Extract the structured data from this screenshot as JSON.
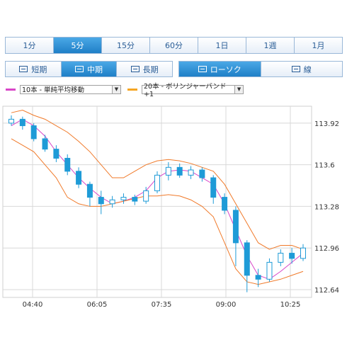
{
  "timeframe_tabs": [
    "1分",
    "5分",
    "15分",
    "60分",
    "1日",
    "1週",
    "1月"
  ],
  "active_timeframe": "5分",
  "period_buttons": [
    {
      "label": "短期",
      "icon": "range-short-icon"
    },
    {
      "label": "中期",
      "icon": "range-mid-icon",
      "active": true
    },
    {
      "label": "長期",
      "icon": "range-long-icon"
    }
  ],
  "chart_type_buttons": [
    {
      "label": "ローソク",
      "icon": "candlestick-icon",
      "active": true
    },
    {
      "label": "線",
      "icon": "line-chart-icon"
    }
  ],
  "indicators": {
    "ma": {
      "label": "10本 - 単純平均移動",
      "color": "#d946c8"
    },
    "bb": {
      "label": "20本 - ボリンジャーバンド+1",
      "color": "#f5a623"
    }
  },
  "colors": {
    "candle": "#1e9bd7",
    "ma": "#d946c8",
    "band": "#f07a2a",
    "grid": "#d8d8d8",
    "accent": "#1f7fc7"
  },
  "chart_data": {
    "type": "candlestick",
    "x_ticks": [
      "04:40",
      "06:05",
      "07:35",
      "09:00",
      "10:25"
    ],
    "y_ticks": [
      113.92,
      113.6,
      113.28,
      112.96,
      112.64
    ],
    "ylim": [
      112.58,
      114.05
    ],
    "grid": true,
    "series": [
      {
        "name": "10本 - 単純平均移動",
        "type": "line",
        "values": [
          113.9,
          113.95,
          113.9,
          113.82,
          113.7,
          113.6,
          113.5,
          113.42,
          113.35,
          113.3,
          113.32,
          113.35,
          113.4,
          113.5,
          113.55,
          113.56,
          113.55,
          113.5,
          113.45,
          113.3,
          113.1,
          112.9,
          112.75,
          112.72,
          112.78,
          112.85,
          112.92
        ]
      },
      {
        "name": "20本 - ボリンジャーバンド+1 上",
        "type": "line",
        "values": [
          114.0,
          114.02,
          113.98,
          113.95,
          113.9,
          113.85,
          113.78,
          113.7,
          113.6,
          113.5,
          113.5,
          113.55,
          113.6,
          113.63,
          113.64,
          113.63,
          113.61,
          113.58,
          113.55,
          113.45,
          113.3,
          113.15,
          113.0,
          112.95,
          112.98,
          112.98,
          112.95
        ]
      },
      {
        "name": "20本 - ボリンジャーバンド+1 下",
        "type": "line",
        "values": [
          113.8,
          113.75,
          113.7,
          113.6,
          113.5,
          113.35,
          113.3,
          113.28,
          113.28,
          113.3,
          113.32,
          113.34,
          113.36,
          113.36,
          113.37,
          113.36,
          113.33,
          113.28,
          113.2,
          113.0,
          112.8,
          112.7,
          112.68,
          112.7,
          112.72,
          112.75,
          112.78
        ]
      }
    ],
    "candles": [
      [
        113.92,
        113.95,
        113.9,
        113.98
      ],
      [
        113.95,
        113.9,
        113.87,
        113.97
      ],
      [
        113.9,
        113.8,
        113.78,
        113.92
      ],
      [
        113.8,
        113.72,
        113.7,
        113.83
      ],
      [
        113.72,
        113.65,
        113.62,
        113.75
      ],
      [
        113.65,
        113.55,
        113.52,
        113.68
      ],
      [
        113.55,
        113.45,
        113.42,
        113.58
      ],
      [
        113.45,
        113.35,
        113.28,
        113.47
      ],
      [
        113.35,
        113.3,
        113.22,
        113.4
      ],
      [
        113.3,
        113.33,
        113.27,
        113.36
      ],
      [
        113.33,
        113.35,
        113.3,
        113.38
      ],
      [
        113.35,
        113.32,
        113.29,
        113.37
      ],
      [
        113.32,
        113.4,
        113.3,
        113.43
      ],
      [
        113.4,
        113.52,
        113.38,
        113.55
      ],
      [
        113.52,
        113.58,
        113.48,
        113.62
      ],
      [
        113.58,
        113.52,
        113.5,
        113.61
      ],
      [
        113.52,
        113.56,
        113.49,
        113.59
      ],
      [
        113.56,
        113.5,
        113.47,
        113.58
      ],
      [
        113.5,
        113.35,
        113.3,
        113.52
      ],
      [
        113.35,
        113.25,
        113.22,
        113.38
      ],
      [
        113.25,
        113.0,
        112.82,
        113.28
      ],
      [
        113.0,
        112.75,
        112.62,
        113.02
      ],
      [
        112.75,
        112.72,
        112.66,
        112.8
      ],
      [
        112.72,
        112.85,
        112.7,
        112.88
      ],
      [
        112.85,
        112.92,
        112.82,
        112.95
      ],
      [
        112.92,
        112.88,
        112.84,
        112.96
      ],
      [
        112.88,
        112.96,
        112.86,
        112.99
      ]
    ]
  }
}
